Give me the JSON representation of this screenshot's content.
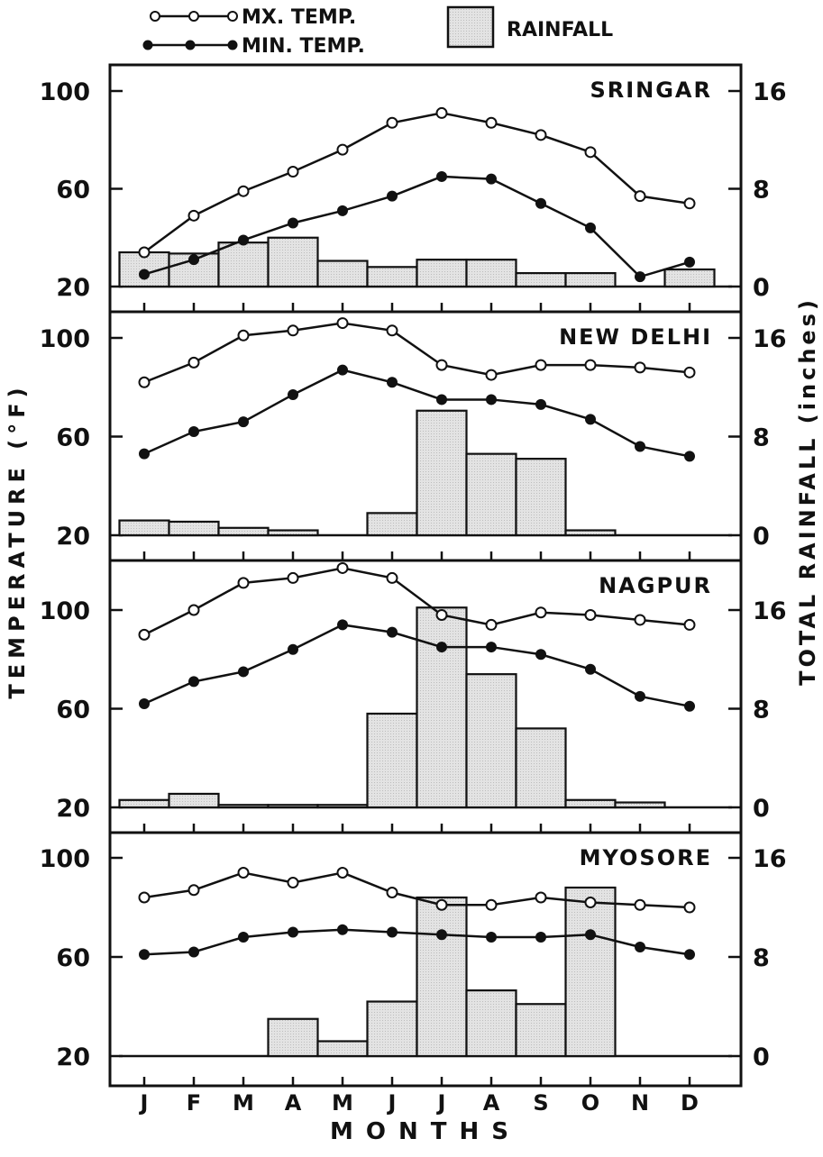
{
  "legend": {
    "max_temp": "MX. TEMP.",
    "min_temp": "MIN. TEMP.",
    "rainfall": "RAINFALL"
  },
  "axes": {
    "left_label": "TEMPERATURE (°F)",
    "right_label": "TOTAL RAINFALL (inches)",
    "x_label": "MONTHS"
  },
  "colors": {
    "bar_fill": "#dedede",
    "ink": "#111111"
  },
  "chart_data": [
    {
      "type": "bar+line",
      "title": "SRINGAR",
      "categories": [
        "J",
        "F",
        "M",
        "A",
        "M",
        "J",
        "J",
        "A",
        "S",
        "O",
        "N",
        "D"
      ],
      "yticks_left": [
        "100",
        "60",
        "20"
      ],
      "yticks_right": [
        "16",
        "8",
        "0"
      ],
      "ylim_left": [
        20,
        100
      ],
      "ylim_right": [
        0,
        16
      ],
      "max_temp": [
        34,
        49,
        59,
        67,
        76,
        87,
        91,
        87,
        82,
        75,
        57,
        54
      ],
      "min_temp": [
        25,
        31,
        39,
        46,
        51,
        57,
        65,
        64,
        54,
        44,
        24,
        30
      ],
      "rainfall": [
        2.8,
        2.7,
        3.6,
        4.0,
        2.1,
        1.6,
        2.2,
        2.2,
        1.1,
        1.1,
        0,
        1.4
      ]
    },
    {
      "type": "bar+line",
      "title": "NEW DELHI",
      "categories": [
        "J",
        "F",
        "M",
        "A",
        "M",
        "J",
        "J",
        "A",
        "S",
        "O",
        "N",
        "D"
      ],
      "yticks_left": [
        "100",
        "60",
        "20"
      ],
      "yticks_right": [
        "16",
        "8",
        "0"
      ],
      "ylim_left": [
        20,
        100
      ],
      "ylim_right": [
        0,
        16
      ],
      "max_temp": [
        82,
        90,
        101,
        103,
        106,
        103,
        89,
        85,
        89,
        89,
        88,
        86
      ],
      "min_temp": [
        53,
        62,
        66,
        77,
        87,
        82,
        75,
        75,
        73,
        67,
        56,
        52
      ],
      "rainfall": [
        1.2,
        1.1,
        0.6,
        0.4,
        0,
        1.8,
        10.1,
        6.6,
        6.2,
        0.4,
        0,
        0
      ]
    },
    {
      "type": "bar+line",
      "title": "NAGPUR",
      "categories": [
        "J",
        "F",
        "M",
        "A",
        "M",
        "J",
        "J",
        "A",
        "S",
        "O",
        "N",
        "D"
      ],
      "yticks_left": [
        "100",
        "60",
        "20"
      ],
      "yticks_right": [
        "16",
        "8",
        "0"
      ],
      "ylim_left": [
        20,
        100
      ],
      "ylim_right": [
        0,
        16
      ],
      "max_temp": [
        90,
        100,
        111,
        113,
        117,
        113,
        98,
        94,
        99,
        98,
        96,
        94
      ],
      "min_temp": [
        62,
        71,
        75,
        84,
        94,
        91,
        85,
        85,
        82,
        76,
        65,
        61
      ],
      "rainfall": [
        0.6,
        1.1,
        0.2,
        0.2,
        0.2,
        7.6,
        16.2,
        10.8,
        6.4,
        0.6,
        0.4,
        0
      ]
    },
    {
      "type": "bar+line",
      "title": "MYOSORE",
      "categories": [
        "J",
        "F",
        "M",
        "A",
        "M",
        "J",
        "J",
        "A",
        "S",
        "O",
        "N",
        "D"
      ],
      "yticks_left": [
        "100",
        "60",
        "20"
      ],
      "yticks_right": [
        "16",
        "8",
        "0"
      ],
      "ylim_left": [
        20,
        100
      ],
      "ylim_right": [
        0,
        16
      ],
      "max_temp": [
        84,
        87,
        94,
        90,
        94,
        86,
        81,
        81,
        84,
        82,
        81,
        80
      ],
      "min_temp": [
        61,
        62,
        68,
        70,
        71,
        70,
        69,
        68,
        68,
        69,
        64,
        61
      ],
      "rainfall": [
        0,
        0,
        0,
        3.0,
        1.2,
        4.4,
        12.8,
        5.3,
        4.2,
        13.6,
        0,
        0
      ]
    }
  ]
}
